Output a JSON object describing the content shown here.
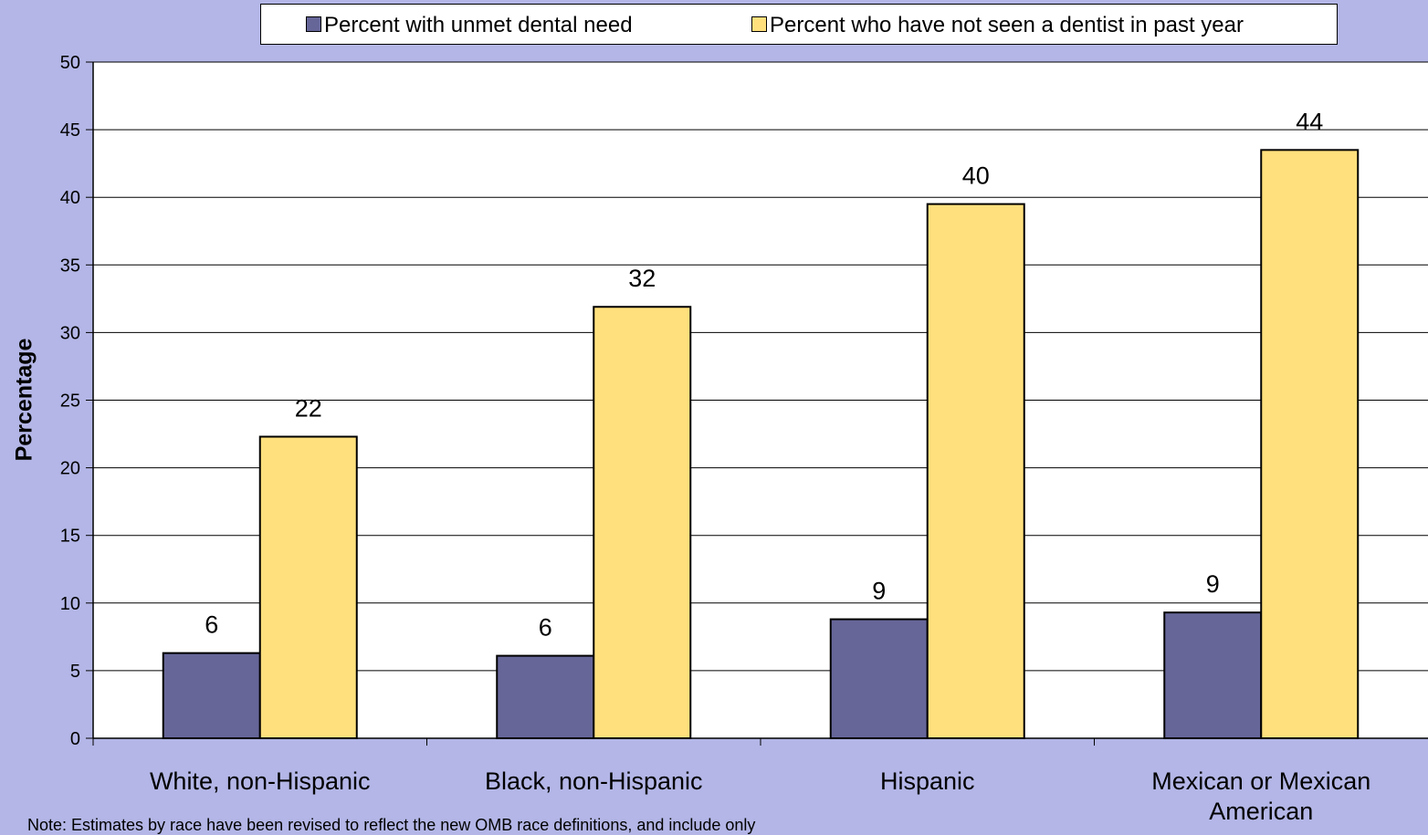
{
  "chart_data": {
    "type": "bar",
    "categories": [
      "White, non-Hispanic",
      "Black, non-Hispanic",
      "Hispanic",
      "Mexican or Mexican American"
    ],
    "series": [
      {
        "name": "Percent with unmet dental need",
        "values": [
          6.3,
          6.1,
          8.8,
          9.3
        ],
        "labels": [
          "6",
          "6",
          "9",
          "9"
        ],
        "color": "#666699"
      },
      {
        "name": "Percent who have not seen a dentist in past year",
        "values": [
          22.3,
          31.9,
          39.5,
          43.5
        ],
        "labels": [
          "22",
          "32",
          "40",
          "44"
        ],
        "color": "#ffe07d"
      }
    ],
    "ylabel": "Percentage",
    "ylim": [
      0,
      50
    ],
    "yticks": [
      0,
      5,
      10,
      15,
      20,
      25,
      30,
      35,
      40,
      45,
      50
    ],
    "grid": true,
    "legend_position": "top"
  },
  "note": "Note: Estimates by race have been revised to reflect the new OMB race definitions, and include only"
}
